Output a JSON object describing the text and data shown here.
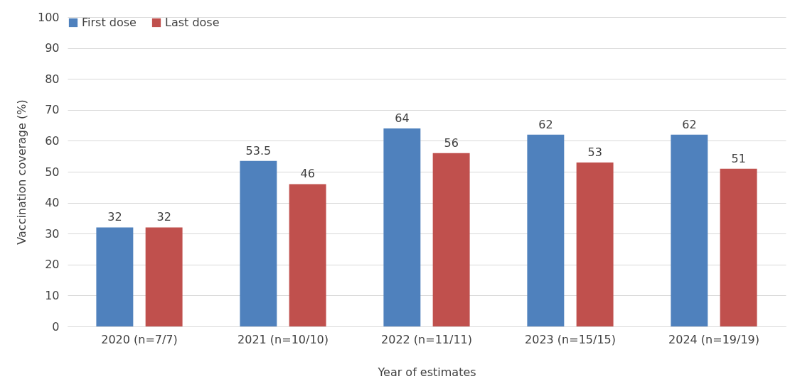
{
  "chart_data": {
    "type": "bar",
    "xlabel": "Year of estimates",
    "ylabel": "Vaccination coverage (%)",
    "categories": [
      "2020 (n=7/7)",
      "2021 (n=10/10)",
      "2022 (n=11/11)",
      "2023 (n=15/15)",
      "2024 (n=19/19)"
    ],
    "series": [
      {
        "name": "First dose",
        "color": "#4f81bd",
        "values": [
          32,
          53.5,
          64,
          62,
          62
        ]
      },
      {
        "name": "Last dose",
        "color": "#c0504d",
        "values": [
          32,
          46,
          56,
          53,
          51
        ]
      }
    ],
    "ylim": [
      0,
      100
    ],
    "yticks": [
      0,
      10,
      20,
      30,
      40,
      50,
      60,
      70,
      80,
      90,
      100
    ],
    "grid": "y",
    "legend": "top left",
    "data_labels": true
  }
}
